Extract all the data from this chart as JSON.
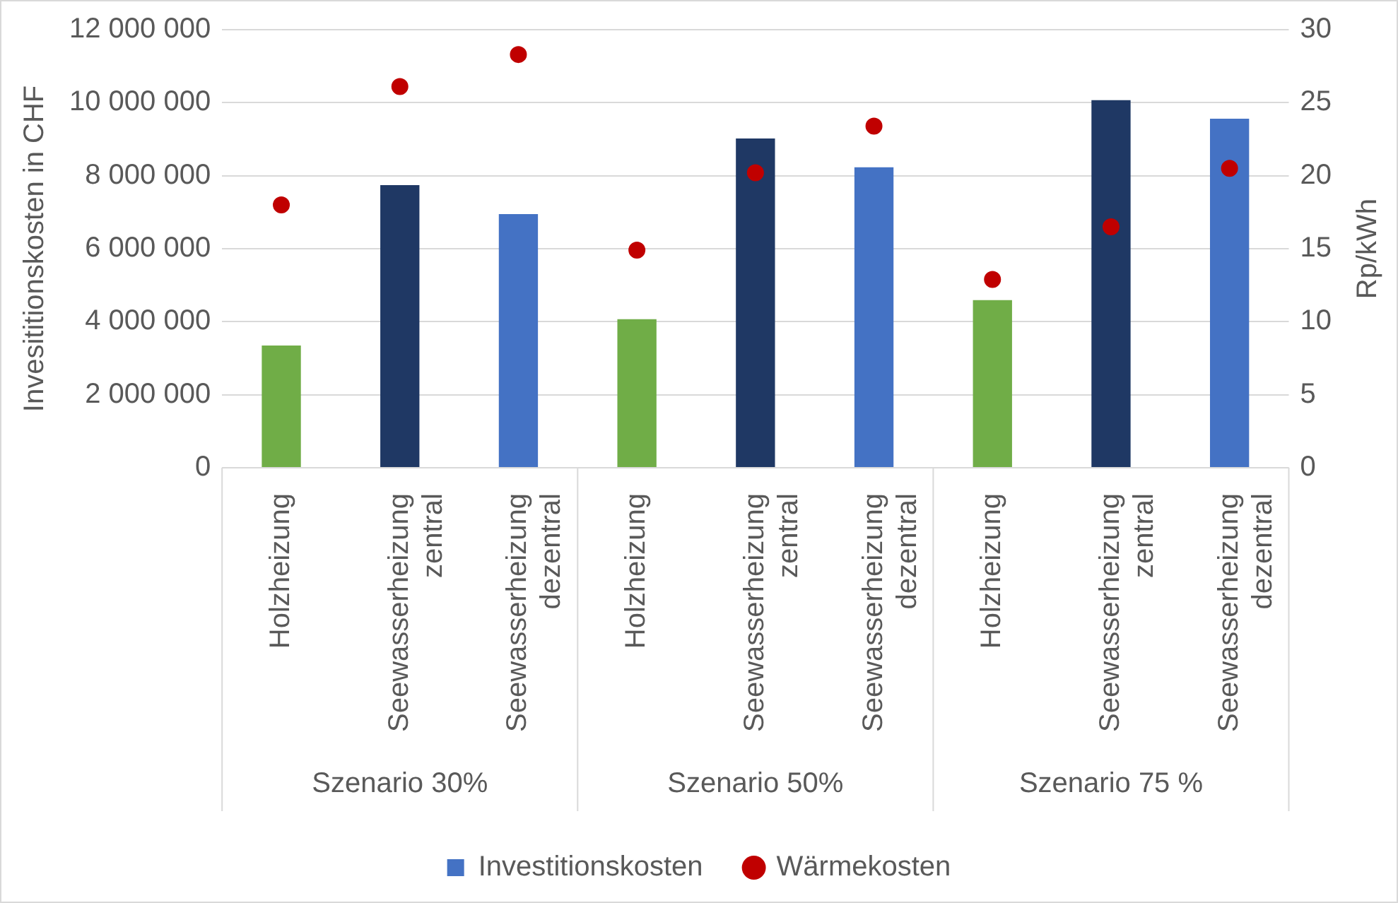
{
  "chart_data": {
    "type": "bar",
    "categories": [
      "Holzheizung",
      "Seewasserheizung zentral",
      "Seewasserheizung dezentral",
      "Holzheizung",
      "Seewasserheizung zentral",
      "Seewasserheizung dezentral",
      "Holzheizung",
      "Seewasserheizung zentral",
      "Seewasserheizung dezentral"
    ],
    "series": [
      {
        "name": "Investitionskosten",
        "color": "#4472c4",
        "colors": [
          "#70ad47",
          "#1f3864",
          "#4472c4",
          "#70ad47",
          "#1f3864",
          "#4472c4",
          "#70ad47",
          "#1f3864",
          "#4472c4"
        ],
        "values": [
          3350000,
          7740000,
          6950000,
          4070000,
          9020000,
          8230000,
          4590000,
          10070000,
          9560000
        ]
      },
      {
        "name": "Wärmekosten",
        "type": "scatter",
        "axis": "y2",
        "color": "#c00000",
        "values": [
          18.0,
          26.1,
          28.3,
          14.9,
          20.2,
          23.4,
          12.9,
          16.5,
          20.5
        ]
      }
    ],
    "ylabel": "Invesititionskosten in CHF",
    "y2label": "Rp/kWh",
    "ylim": [
      0,
      12000000
    ],
    "yticks": [
      0,
      {
        "value": 2000000,
        "label": "2 000 000"
      },
      {
        "value": 4000000,
        "label": "4 000 000"
      },
      {
        "value": 6000000,
        "label": "6 000 000"
      },
      {
        "value": 8000000,
        "label": "8 000 000"
      },
      {
        "value": 10000000,
        "label": "10 000 000"
      },
      {
        "value": 12000000,
        "label": "12 000 000"
      }
    ],
    "y2lim": [
      0,
      30
    ],
    "y2ticks": [
      0,
      5,
      10,
      15,
      20,
      25,
      30
    ],
    "annotations": [
      "Szenario 30%",
      "Szenario 50%",
      "Szenario 75 %"
    ],
    "grid": "y",
    "legend": "bottom",
    "marker": "circle"
  }
}
